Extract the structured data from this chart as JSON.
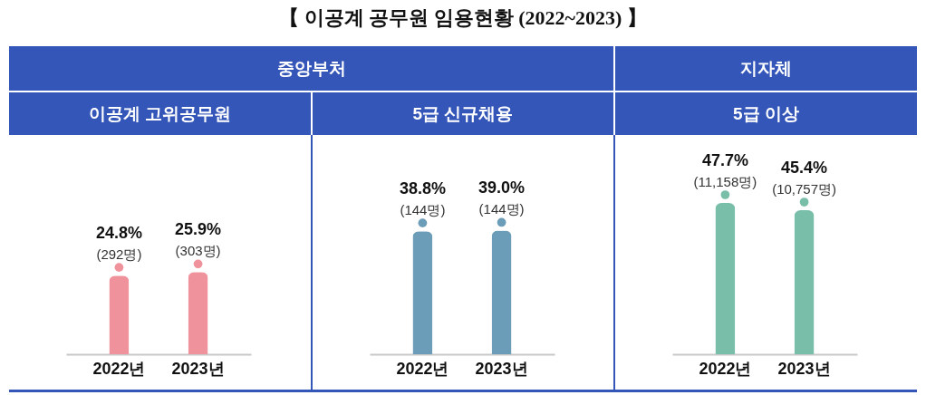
{
  "chart_data": [
    {
      "type": "other",
      "title": "【 이공계 공무원 임용현황 (2022~2023) 】",
      "annotations": [
        "중앙부처",
        "지자체"
      ]
    },
    {
      "type": "bar",
      "title": "이공계 고위공무원",
      "categories": [
        "2022년",
        "2023년"
      ],
      "values": [
        24.8,
        25.9
      ],
      "color": "#f0929b",
      "value_labels": [
        "24.8%",
        "25.9%"
      ],
      "annotations": [
        {
          "text": "(292명)",
          "x": "2022년",
          "y": 24.8
        },
        {
          "text": "(303명)",
          "x": "2023년",
          "y": 25.9
        }
      ],
      "tick_labels": "x"
    },
    {
      "type": "bar",
      "title": "5급 신규채용",
      "categories": [
        "2022년",
        "2023년"
      ],
      "values": [
        38.8,
        39.0
      ],
      "color": "#6b9cb8",
      "value_labels": [
        "38.8%",
        "39.0%"
      ],
      "annotations": [
        {
          "text": "(144명)",
          "x": "2022년",
          "y": 38.8
        },
        {
          "text": "(144명)",
          "x": "2023년",
          "y": 39.0
        }
      ],
      "tick_labels": "x"
    },
    {
      "type": "bar",
      "title": "5급 이상",
      "categories": [
        "2022년",
        "2023년"
      ],
      "values": [
        47.7,
        45.4
      ],
      "color": "#79bea8",
      "value_labels": [
        "47.7%",
        "45.4%"
      ],
      "annotations": [
        {
          "text": "(11,158명)",
          "x": "2022년",
          "y": 47.7
        },
        {
          "text": "(10,757명)",
          "x": "2023년",
          "y": 45.4
        }
      ],
      "tick_labels": "x"
    }
  ]
}
